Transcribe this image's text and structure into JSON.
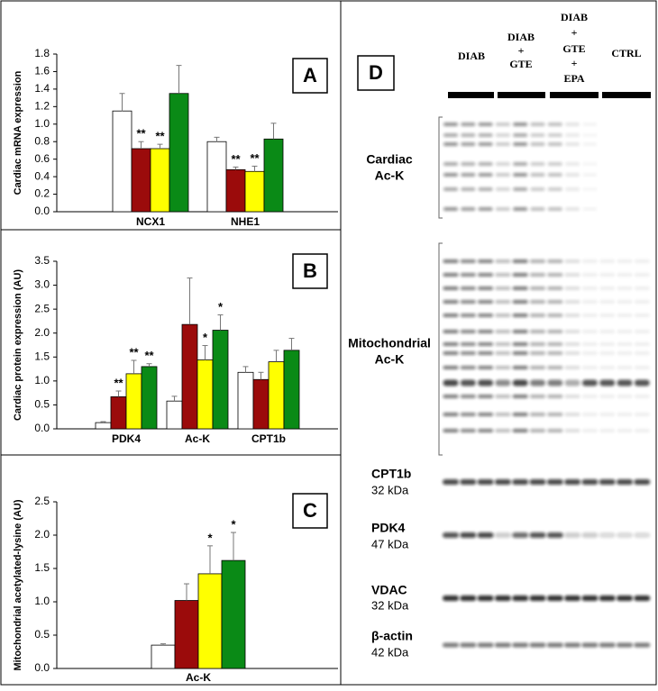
{
  "chart_data": [
    {
      "type": "bar",
      "letter": "A",
      "ylabel": "Cardiac mRNA expression",
      "categories": [
        "NCX1",
        "NHE1"
      ],
      "ylim": [
        0,
        1.8
      ],
      "yticks": [
        {
          "value": 0,
          "label": "0.0"
        },
        0.2,
        0.4,
        0.6,
        0.8,
        {
          "value": 1,
          "label": "1.0"
        },
        1.2,
        1.4,
        1.6,
        1.8
      ],
      "series": [
        {
          "color": "#ffffff",
          "values": [
            1.15,
            0.8
          ],
          "errors": [
            0.2,
            0.05
          ],
          "annotations": [
            null,
            null
          ]
        },
        {
          "color": "#9b0b0b",
          "values": [
            0.72,
            0.48
          ],
          "errors": [
            0.08,
            0.03
          ],
          "annotations": [
            "**",
            "**"
          ]
        },
        {
          "color": "#ffff00",
          "values": [
            0.72,
            0.46
          ],
          "errors": [
            0.05,
            0.06
          ],
          "annotations": [
            "**",
            "**"
          ]
        },
        {
          "color": "#0a8a16",
          "values": [
            1.35,
            0.83
          ],
          "errors": [
            0.32,
            0.18
          ],
          "annotations": [
            null,
            null
          ]
        }
      ]
    },
    {
      "type": "bar",
      "letter": "B",
      "ylabel": "Cardiac protein expression (AU)",
      "categories": [
        "PDK4",
        "Ac-K",
        "CPT1b"
      ],
      "ylim": [
        0,
        3.5
      ],
      "yticks": [
        {
          "value": 0,
          "label": "0.0"
        },
        0.5,
        {
          "value": 1,
          "label": "1.0"
        },
        1.5,
        {
          "value": 2,
          "label": "2.0"
        },
        2.5,
        {
          "value": 3,
          "label": "3.0"
        },
        3.5
      ],
      "series": [
        {
          "color": "#ffffff",
          "values": [
            0.13,
            0.58,
            1.18
          ],
          "errors": [
            0.02,
            0.1,
            0.12
          ],
          "annotations": [
            null,
            null,
            null
          ]
        },
        {
          "color": "#9b0b0b",
          "values": [
            0.67,
            2.18,
            1.03
          ],
          "errors": [
            0.12,
            0.97,
            0.15
          ],
          "annotations": [
            "**",
            null,
            null
          ]
        },
        {
          "color": "#ffff00",
          "values": [
            1.15,
            1.44,
            1.4
          ],
          "errors": [
            0.28,
            0.3,
            0.24
          ],
          "annotations": [
            "**",
            "*",
            null
          ]
        },
        {
          "color": "#0a8a16",
          "values": [
            1.3,
            2.06,
            1.64
          ],
          "errors": [
            0.06,
            0.32,
            0.25
          ],
          "annotations": [
            "**",
            "*",
            null
          ]
        }
      ]
    },
    {
      "type": "bar",
      "letter": "C",
      "ylabel": "Mitochondrial acetylated-lysine (AU)",
      "categories": [
        "Ac-K"
      ],
      "ylim": [
        0,
        2.5
      ],
      "yticks": [
        {
          "value": 0,
          "label": "0.0"
        },
        0.5,
        {
          "value": 1,
          "label": "1.0"
        },
        1.5,
        {
          "value": 2,
          "label": "2.0"
        },
        2.5
      ],
      "series": [
        {
          "color": "#ffffff",
          "values": [
            0.35
          ],
          "errors": [
            0.02
          ],
          "annotations": [
            null
          ]
        },
        {
          "color": "#9b0b0b",
          "values": [
            1.02
          ],
          "errors": [
            0.25
          ],
          "annotations": [
            null
          ]
        },
        {
          "color": "#ffff00",
          "values": [
            1.42
          ],
          "errors": [
            0.42
          ],
          "annotations": [
            "*"
          ]
        },
        {
          "color": "#0a8a16",
          "values": [
            1.62
          ],
          "errors": [
            0.42
          ],
          "annotations": [
            "*"
          ]
        }
      ]
    }
  ],
  "panel_d": {
    "letter": "D",
    "lanes": [
      [
        "DIAB"
      ],
      [
        "DIAB",
        "+",
        "GTE"
      ],
      [
        "DIAB",
        "+",
        "GTE",
        "+",
        "EPA"
      ],
      [
        "CTRL"
      ]
    ],
    "rows": [
      {
        "label": [
          "Cardiac",
          "Ac-K"
        ]
      },
      {
        "label": [
          "Mitochondrial",
          "Ac-K"
        ]
      },
      {
        "label": [
          "CPT1b"
        ],
        "size": "32 kDa"
      },
      {
        "label": [
          "PDK4"
        ],
        "size": "47 kDa"
      },
      {
        "label": [
          "VDAC"
        ],
        "size": "32 kDa"
      },
      {
        "label": [
          "β-actin"
        ],
        "size": "42 kDa"
      }
    ]
  }
}
